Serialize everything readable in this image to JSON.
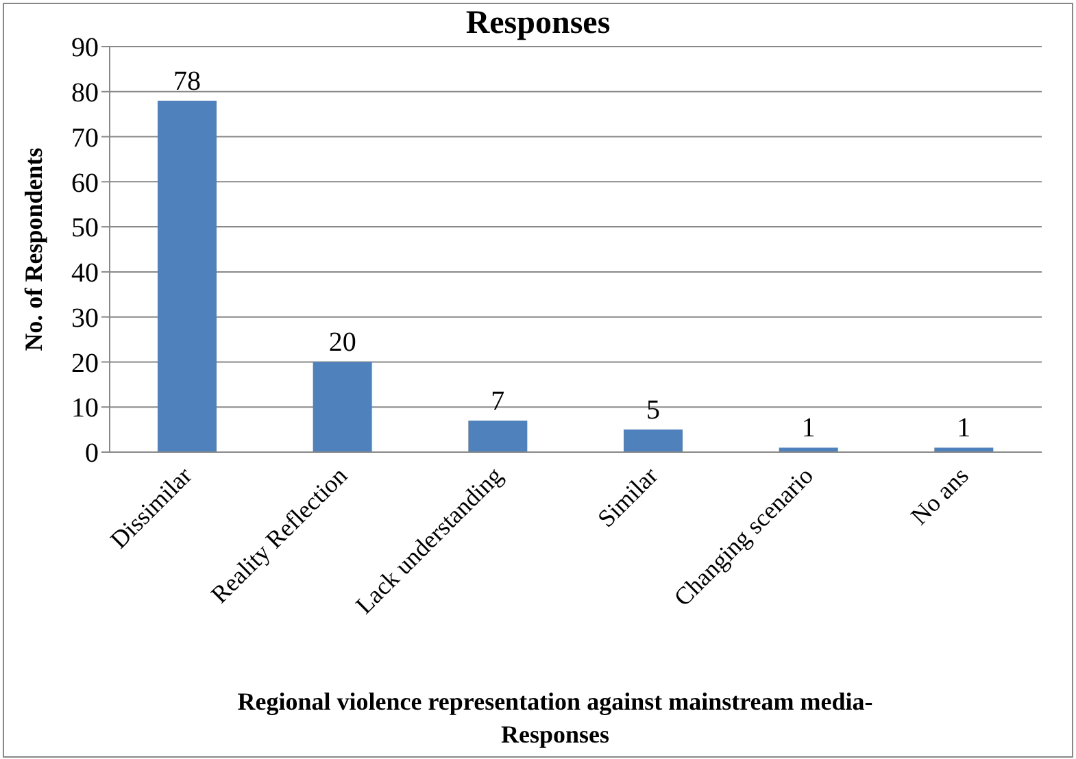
{
  "chart_data": {
    "type": "bar",
    "title": "Responses",
    "xlabel": "Regional violence representation against mainstream media- Responses",
    "ylabel": "No. of Respondents",
    "categories": [
      "Dissimilar",
      "Reality Reflection",
      "Lack understanding",
      "Similar",
      "Changing scenario",
      "No ans"
    ],
    "values": [
      78,
      20,
      7,
      5,
      1,
      1
    ],
    "color": "#4f81bd",
    "ylim": [
      0,
      90
    ],
    "yticks": [
      0,
      10,
      20,
      30,
      40,
      50,
      60,
      70,
      80,
      90
    ],
    "grid": "y",
    "data_labels": true,
    "legend": false
  }
}
